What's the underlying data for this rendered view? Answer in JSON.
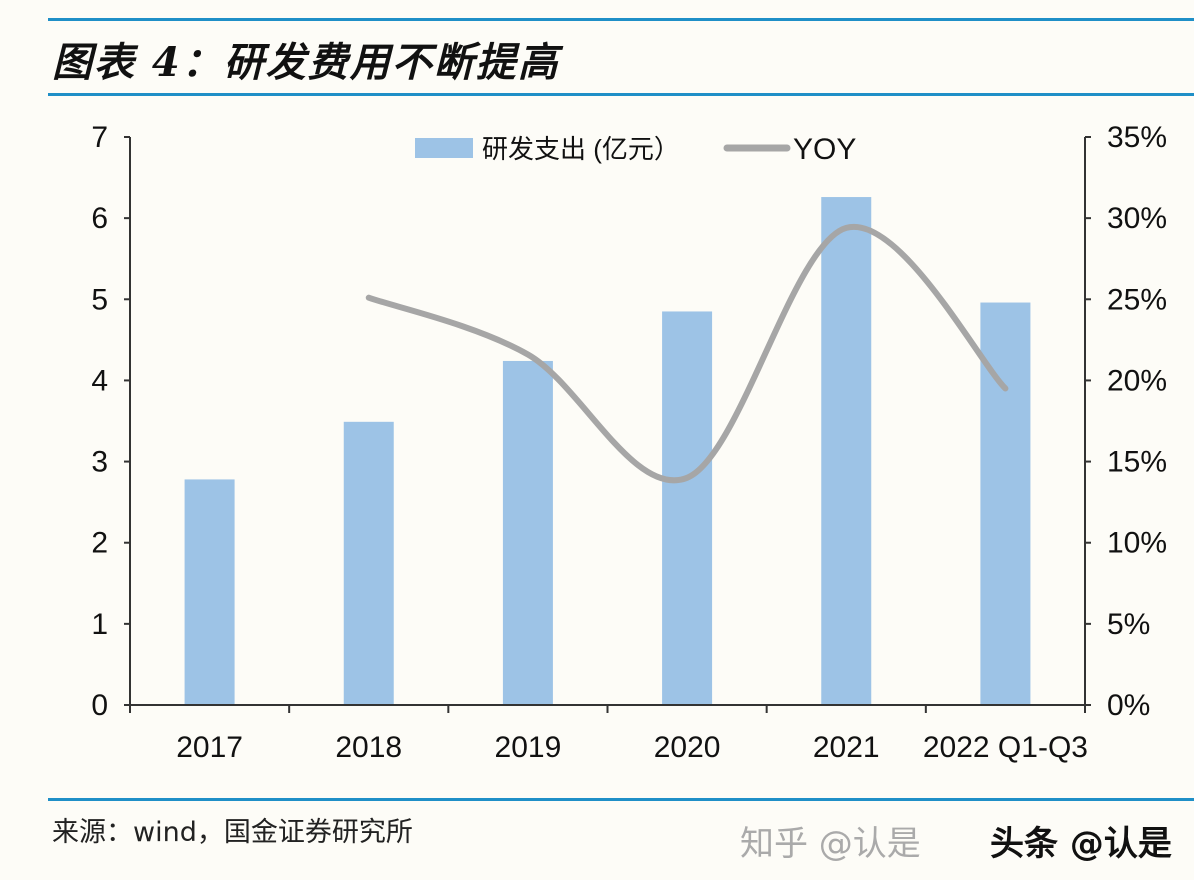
{
  "title": "图表 4：研发费用不断提高",
  "source": "来源：wind，国金证券研究所",
  "watermark": [
    "知乎 @认是",
    "头条 @认是"
  ],
  "chart_data": {
    "type": "bar+line",
    "categories": [
      "2017",
      "2018",
      "2019",
      "2020",
      "2021",
      "2022 Q1-Q3"
    ],
    "series": [
      {
        "name": "研发支出 (亿元）",
        "type": "bar",
        "axis": "left",
        "color": "#9dc3e6",
        "values": [
          2.78,
          3.49,
          4.24,
          4.85,
          6.26,
          4.96
        ]
      },
      {
        "name": "YOY",
        "type": "line",
        "axis": "right",
        "color": "#a6a6a6",
        "values": [
          null,
          25.1,
          21.6,
          14.0,
          29.4,
          19.5
        ]
      }
    ],
    "left_axis": {
      "min": 0,
      "max": 7,
      "ticks": [
        "0",
        "1",
        "2",
        "3",
        "4",
        "5",
        "6",
        "7"
      ]
    },
    "right_axis": {
      "min": 0,
      "max": 35,
      "ticks": [
        "0%",
        "5%",
        "10%",
        "15%",
        "20%",
        "25%",
        "30%",
        "35%"
      ]
    },
    "legend": "top-center",
    "grid": false
  }
}
